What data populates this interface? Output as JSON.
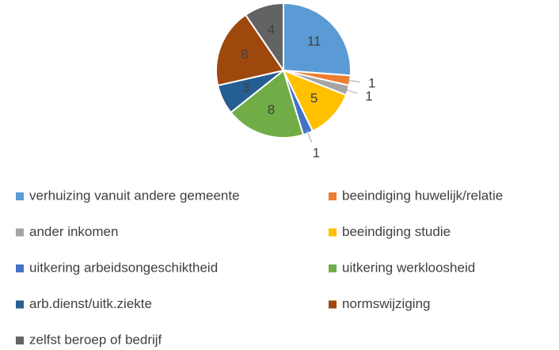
{
  "chart_data": {
    "type": "pie",
    "categories": [
      "verhuizing vanuit andere gemeente",
      "beeindiging huwelijk/relatie",
      "ander inkomen",
      "beeindiging studie",
      "uitkering arbeidsongeschiktheid",
      "uitkering werkloosheid",
      "arb.dienst/uitk.ziekte",
      "normswijziging",
      "zelfst beroep of bedrijf"
    ],
    "values": [
      11,
      1,
      1,
      5,
      1,
      8,
      3,
      8,
      4
    ],
    "colors": [
      "#5b9bd5",
      "#ed7d31",
      "#a5a5a5",
      "#ffc000",
      "#4472c4",
      "#70ad47",
      "#255e91",
      "#9e480e",
      "#636363"
    ],
    "legend": "bottom"
  }
}
